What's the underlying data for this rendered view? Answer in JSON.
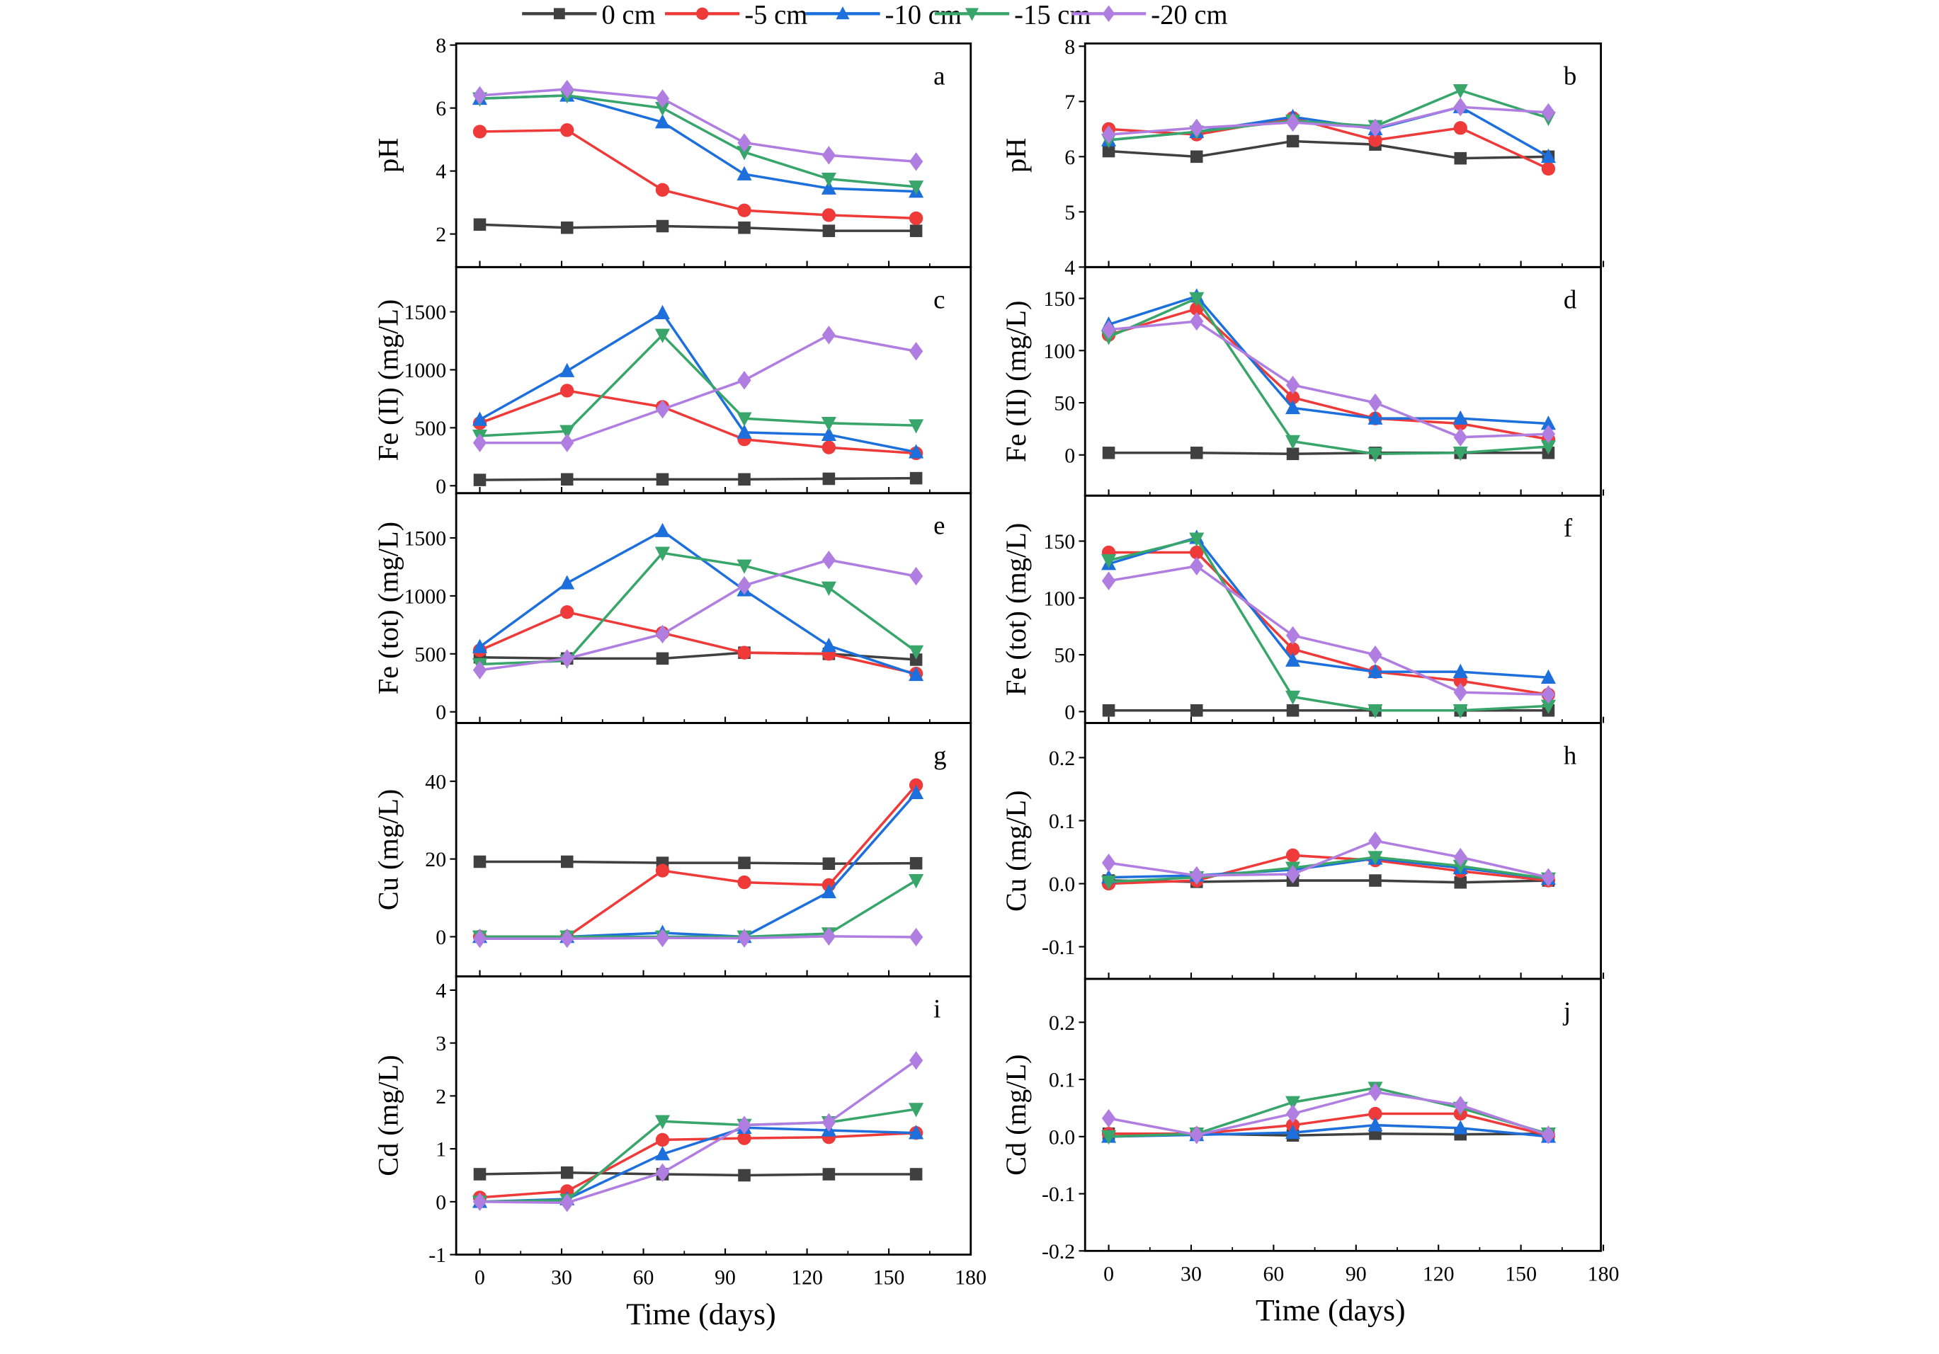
{
  "chart_data": {
    "type": "line",
    "layout": "5 rows x 2 columns of panels, shared x axis per column",
    "legend": {
      "placement": "top",
      "entries": [
        "0 cm",
        "-5 cm",
        "-10 cm",
        "-15 cm",
        "-20 cm"
      ]
    },
    "series_styles": [
      {
        "name": "0 cm",
        "color": "#404040",
        "marker": "square"
      },
      {
        "name": "-5 cm",
        "color": "#ef3a3a",
        "marker": "circle"
      },
      {
        "name": "-10 cm",
        "color": "#1d6fdc",
        "marker": "triangle-up"
      },
      {
        "name": "-15 cm",
        "color": "#38a56a",
        "marker": "triangle-down"
      },
      {
        "name": "-20 cm",
        "color": "#b07ee0",
        "marker": "diamond"
      }
    ],
    "x": [
      0,
      32,
      67,
      97,
      128,
      160
    ],
    "xlabel": "Time (days)",
    "xticks": [
      "0",
      "30",
      "60",
      "90",
      "120",
      "150",
      "180"
    ],
    "xlim": [
      -9,
      180
    ],
    "grid": false,
    "panels": [
      {
        "id": "a",
        "ylabel": "pH",
        "ylim": [
          0.95,
          8.05
        ],
        "yticks": [
          2,
          4,
          6,
          8
        ],
        "yticklabels": [
          "2",
          "4",
          "6",
          "8"
        ],
        "series": [
          [
            2.3,
            2.2,
            2.25,
            2.2,
            2.1,
            2.1
          ],
          [
            5.25,
            5.3,
            3.4,
            2.75,
            2.6,
            2.5
          ],
          [
            6.3,
            6.4,
            5.55,
            3.9,
            3.45,
            3.35
          ],
          [
            6.3,
            6.4,
            6.0,
            4.6,
            3.75,
            3.5
          ],
          [
            6.4,
            6.6,
            6.3,
            4.9,
            4.5,
            4.3
          ]
        ]
      },
      {
        "id": "b",
        "ylabel": "pH",
        "ylim": [
          4,
          8.05
        ],
        "yticks": [
          4,
          5,
          6,
          7,
          8
        ],
        "yticklabels": [
          "4",
          "5",
          "6",
          "7",
          "8"
        ],
        "series": [
          [
            6.1,
            6.0,
            6.28,
            6.22,
            5.97,
            6.0
          ],
          [
            6.5,
            6.4,
            6.7,
            6.3,
            6.52,
            5.78
          ],
          [
            6.3,
            6.45,
            6.72,
            6.5,
            6.9,
            6.0
          ],
          [
            6.3,
            6.45,
            6.65,
            6.55,
            7.2,
            6.7
          ],
          [
            6.4,
            6.52,
            6.62,
            6.52,
            6.9,
            6.8
          ]
        ]
      },
      {
        "id": "c",
        "ylabel": "Fe (II) (mg/L)",
        "ylim": [
          -64,
          1886
        ],
        "yticks": [
          0,
          500,
          1000,
          1500
        ],
        "yticklabels": [
          "0",
          "500",
          "1000",
          "1500"
        ],
        "series": [
          [
            50,
            55,
            55,
            55,
            60,
            65
          ],
          [
            540,
            820,
            680,
            400,
            330,
            280
          ],
          [
            570,
            990,
            1490,
            460,
            440,
            290
          ],
          [
            430,
            470,
            1300,
            580,
            540,
            520
          ],
          [
            370,
            370,
            660,
            910,
            1300,
            1160
          ]
        ]
      },
      {
        "id": "d",
        "ylabel": "Fe (II) (mg/L)",
        "ylim": [
          -39,
          180
        ],
        "yticks": [
          0,
          50,
          100,
          150
        ],
        "yticklabels": [
          "0",
          "50",
          "100",
          "150"
        ],
        "series": [
          [
            2,
            2,
            1,
            2,
            2,
            2
          ],
          [
            115,
            140,
            55,
            35,
            30,
            15
          ],
          [
            125,
            152,
            45,
            35,
            35,
            30
          ],
          [
            113,
            150,
            13,
            1,
            2,
            8
          ],
          [
            120,
            128,
            67,
            50,
            17,
            20
          ]
        ]
      },
      {
        "id": "e",
        "ylabel": "Fe (tot) (mg/L)",
        "ylim": [
          -96,
          1886
        ],
        "yticks": [
          0,
          500,
          1000,
          1500
        ],
        "yticklabels": [
          "0",
          "500",
          "1000",
          "1500"
        ],
        "series": [
          [
            470,
            460,
            460,
            510,
            500,
            450
          ],
          [
            530,
            860,
            680,
            510,
            500,
            330
          ],
          [
            560,
            1110,
            1560,
            1050,
            570,
            320
          ],
          [
            410,
            440,
            1370,
            1260,
            1070,
            520
          ],
          [
            360,
            460,
            670,
            1090,
            1310,
            1170
          ]
        ]
      },
      {
        "id": "f",
        "ylabel": "Fe (tot) (mg/L)",
        "ylim": [
          -10,
          190
        ],
        "yticks": [
          0,
          50,
          100,
          150
        ],
        "yticklabels": [
          "0",
          "50",
          "100",
          "150"
        ],
        "series": [
          [
            1,
            1,
            1,
            1,
            1,
            1
          ],
          [
            140,
            140,
            55,
            35,
            27,
            15
          ],
          [
            130,
            153,
            45,
            35,
            35,
            30
          ],
          [
            133,
            152,
            13,
            1,
            1,
            5
          ],
          [
            115,
            128,
            67,
            50,
            17,
            15
          ]
        ]
      },
      {
        "id": "g",
        "ylabel": "Cu (mg/L)",
        "ylim": [
          -10.2,
          55
        ],
        "yticks": [
          0,
          20,
          40
        ],
        "yticklabels": [
          "0",
          "20",
          "40"
        ],
        "series": [
          [
            19.3,
            19.3,
            19,
            19,
            18.8,
            18.9
          ],
          [
            0,
            0,
            17,
            14,
            13.3,
            39
          ],
          [
            0,
            0,
            1,
            0,
            11.5,
            37
          ],
          [
            0,
            0,
            0,
            0,
            0.8,
            14.5
          ],
          [
            -0.5,
            -0.5,
            -0.3,
            -0.4,
            0.1,
            -0.1
          ]
        ]
      },
      {
        "id": "h",
        "ylabel": "Cu (mg/L)",
        "ylim": [
          -0.151,
          0.255
        ],
        "yticks": [
          -0.1,
          0,
          0.1,
          0.2
        ],
        "yticklabels": [
          "-0.1",
          "0.0",
          "0.1",
          "0.2"
        ],
        "series": [
          [
            0.005,
            0.003,
            0.005,
            0.005,
            0.002,
            0.005
          ],
          [
            0,
            0.005,
            0.045,
            0.037,
            0.02,
            0.005
          ],
          [
            0.01,
            0.013,
            0.022,
            0.04,
            0.025,
            0.008
          ],
          [
            0.003,
            0.01,
            0.025,
            0.042,
            0.028,
            0.008
          ],
          [
            0.033,
            0.013,
            0.015,
            0.068,
            0.042,
            0.01
          ]
        ]
      },
      {
        "id": "i",
        "ylabel": "Cd (mg/L)",
        "ylim": [
          -1,
          4.26
        ],
        "yticks": [
          -1,
          0,
          1,
          2,
          3,
          4
        ],
        "yticklabels": [
          "-1",
          "0",
          "1",
          "2",
          "3",
          "4"
        ],
        "series": [
          [
            0.52,
            0.55,
            0.52,
            0.5,
            0.52,
            0.52
          ],
          [
            0.08,
            0.2,
            1.17,
            1.2,
            1.22,
            1.3
          ],
          [
            0,
            0.05,
            0.9,
            1.4,
            1.35,
            1.3
          ],
          [
            0,
            0.03,
            1.52,
            1.45,
            1.5,
            1.75
          ],
          [
            0,
            -0.02,
            0.55,
            1.45,
            1.5,
            2.67
          ]
        ]
      },
      {
        "id": "j",
        "ylabel": "Cd (mg/L)",
        "ylim": [
          -0.2,
          0.276
        ],
        "yticks": [
          -0.2,
          -0.1,
          0,
          0.1,
          0.2
        ],
        "yticklabels": [
          "-0.2",
          "-0.1",
          "0.0",
          "0.1",
          "0.2"
        ],
        "series": [
          [
            0.005,
            0.005,
            0.002,
            0.005,
            0.004,
            0.005
          ],
          [
            0.005,
            0.005,
            0.02,
            0.04,
            0.04,
            0.002
          ],
          [
            0,
            0.003,
            0.007,
            0.02,
            0.015,
            0
          ],
          [
            0,
            0.005,
            0.06,
            0.085,
            0.05,
            0.005
          ],
          [
            0.032,
            0.003,
            0.04,
            0.078,
            0.055,
            0.003
          ]
        ]
      }
    ]
  }
}
